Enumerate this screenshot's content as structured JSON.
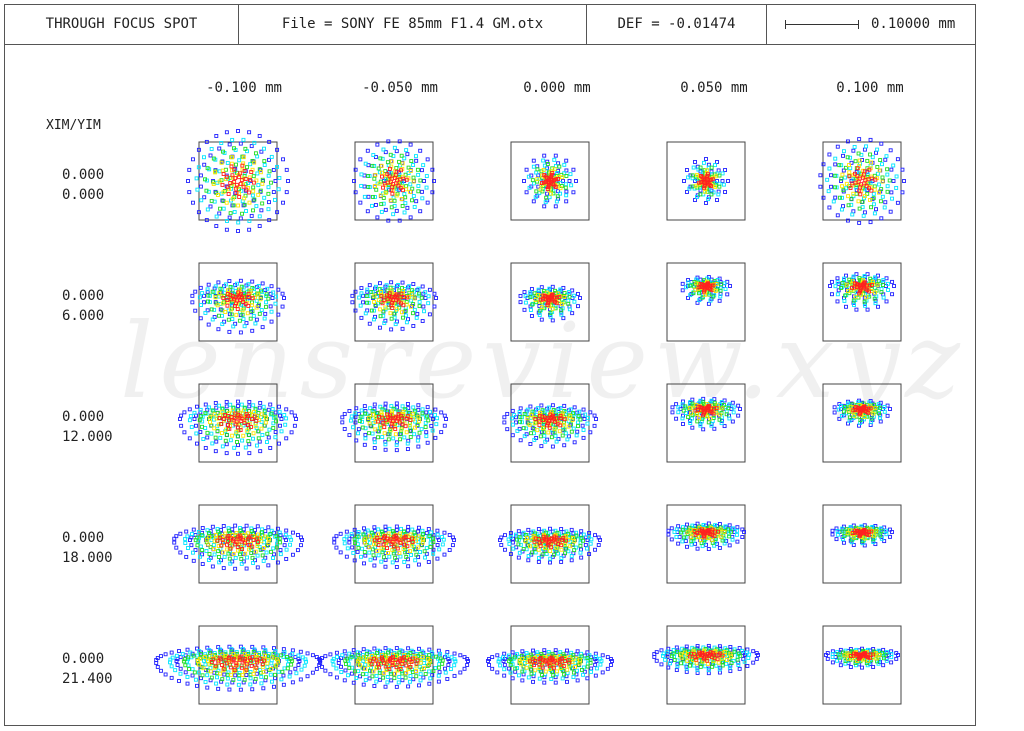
{
  "header": {
    "title": "THROUGH FOCUS SPOT",
    "file": "File = SONY FE 85mm F1.4 GM.otx",
    "def": "DEF = -0.01474",
    "scale_value": "0.10000 mm"
  },
  "columns": [
    "-0.100 mm",
    "-0.050 mm",
    "0.000 mm",
    "0.050 mm",
    "0.100 mm"
  ],
  "field_header": "XIM/YIM",
  "fields": [
    {
      "xim": "0.000",
      "yim": "0.000"
    },
    {
      "xim": "0.000",
      "yim": "6.000"
    },
    {
      "xim": "0.000",
      "yim": "12.000"
    },
    {
      "xim": "0.000",
      "yim": "18.000"
    },
    {
      "xim": "0.000",
      "yim": "21.400"
    }
  ],
  "wavelength_colors": [
    "#2020ff",
    "#00e5ff",
    "#22dd22",
    "#ffe600",
    "#ff2020"
  ],
  "watermark": "lensreview.xyz"
}
